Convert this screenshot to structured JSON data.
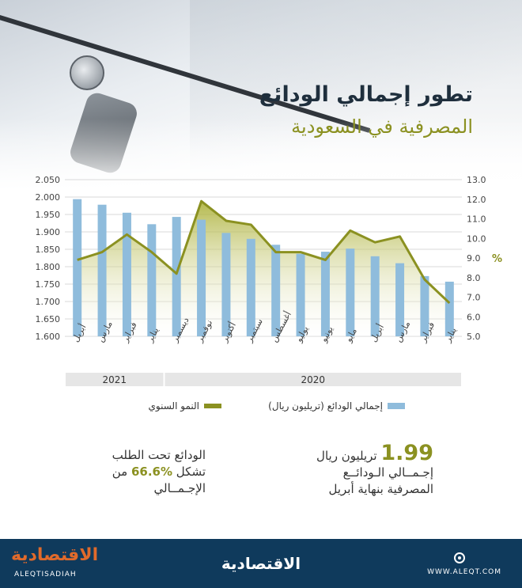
{
  "title": "تطور إجمالي الودائع",
  "subtitle": "المصرفية في السعودية",
  "chart_data": {
    "type": "bar",
    "categories": [
      "يناير",
      "فبراير",
      "مارس",
      "أبريل",
      "مايو",
      "يونيو",
      "يوليو",
      "أغسطس",
      "سبتمبر",
      "أكتوبر",
      "نوفمبر",
      "ديسمبر",
      "يناير",
      "فبراير",
      "مارس",
      "أبريل"
    ],
    "year_groups": [
      {
        "label": "2020",
        "count": 12
      },
      {
        "label": "2021",
        "count": 4
      }
    ],
    "series": [
      {
        "name": "إجمالي الودائع (تريليون ريال)",
        "type": "bar",
        "axis": "left",
        "values": [
          1.757,
          1.773,
          1.81,
          1.83,
          1.852,
          1.843,
          1.837,
          1.863,
          1.88,
          1.897,
          1.935,
          1.943,
          1.922,
          1.955,
          1.978,
          1.994
        ]
      },
      {
        "name": "النمو السنوي",
        "type": "area-line",
        "axis": "right",
        "values": [
          6.7,
          7.9,
          10.1,
          9.8,
          10.4,
          8.9,
          9.3,
          9.3,
          10.7,
          10.9,
          11.9,
          8.2,
          9.3,
          10.2,
          9.3,
          8.9
        ]
      }
    ],
    "left_axis": {
      "min": 1.6,
      "max": 2.05,
      "ticks": [
        "1.600",
        "1.650",
        "1.700",
        "1.750",
        "1.800",
        "1.850",
        "1.900",
        "1.950",
        "2.000",
        "2.050"
      ]
    },
    "right_axis": {
      "min": 5.0,
      "max": 13.0,
      "unit": "%",
      "ticks": [
        "5.0",
        "6.0",
        "7.0",
        "8.0",
        "9.0",
        "10.0",
        "11.0",
        "12.0",
        "13.0"
      ]
    },
    "grid": true,
    "legend_position": "bottom"
  },
  "notes": {
    "right": {
      "big": "1.99",
      "unit": "تريليون ريال",
      "line2": "إجـمــالي الـودائــع",
      "line3": "المصرفية بنهاية أبريل"
    },
    "left": {
      "line1": "الودائع تحت الطلب",
      "line2_prefix": "تشكل",
      "line2_value": "%66.6",
      "line2_suffix": "من",
      "line3": "الإجـمــالي"
    }
  },
  "footer": {
    "brand_left": "الاقتصادية",
    "brand_left_latin": "ALEQTISADIAH",
    "brand_center": "الاقتصادية",
    "website": "WWW.ALEQT.COM"
  },
  "colors": {
    "bar": "#8fbcdc",
    "line": "#8b9121",
    "title": "#1f2f3d",
    "footer": "#0f3a5c",
    "brand": "#e06a2b"
  }
}
